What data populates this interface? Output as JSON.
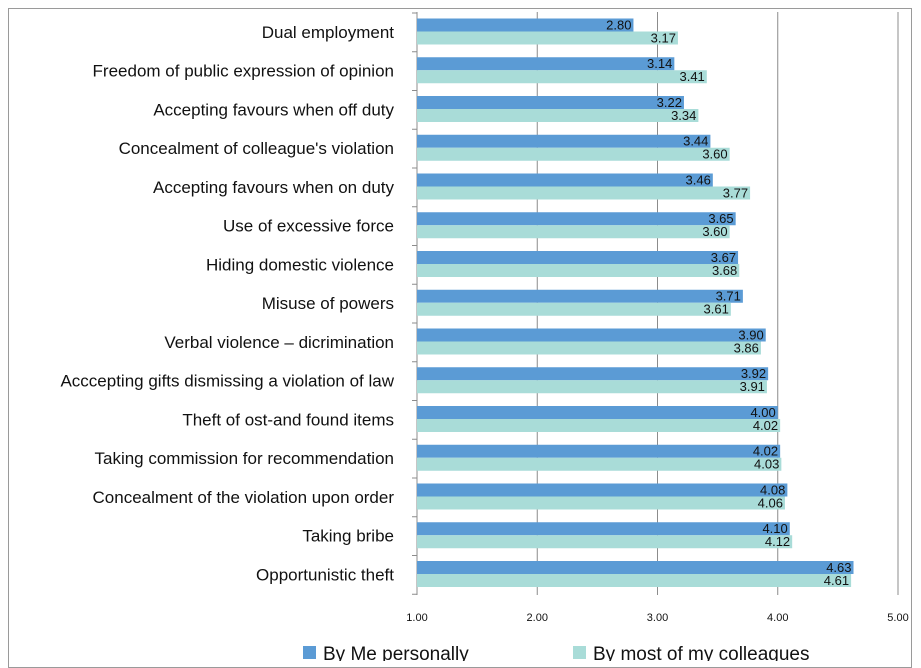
{
  "chart_data": {
    "type": "bar",
    "orientation": "horizontal",
    "categories": [
      "Dual employment",
      "Freedom of public expression of opinion",
      "Accepting favours when off duty",
      "Concealment of colleague's violation",
      "Accepting favours when on duty",
      "Use of excessive force",
      "Hiding domestic violence",
      "Misuse of powers",
      "Verbal violence – dicrimination",
      "Acccepting gifts dismissing a violation of law",
      "Theft of ost-and found items",
      "Taking commission for recommendation",
      "Concealment of the violation upon order",
      "Taking bribe",
      "Opportunistic theft"
    ],
    "series": [
      {
        "name": "By Me personally",
        "color": "#5b9bd5",
        "values": [
          2.8,
          3.14,
          3.22,
          3.44,
          3.46,
          3.65,
          3.67,
          3.71,
          3.9,
          3.92,
          4.0,
          4.02,
          4.08,
          4.1,
          4.63
        ],
        "labels": [
          "2.80",
          "3.14",
          "3.22",
          "3.44",
          "3.46",
          "3.65",
          "3.67",
          "3.71",
          "3.90",
          "3.92",
          "4.00",
          "4.02",
          "4.08",
          "4.10",
          "4.63"
        ]
      },
      {
        "name": "By most of my colleagues",
        "color": "#a9dcd8",
        "values": [
          3.17,
          3.41,
          3.34,
          3.6,
          3.77,
          3.6,
          3.68,
          3.61,
          3.86,
          3.91,
          4.02,
          4.03,
          4.06,
          4.12,
          4.61
        ],
        "labels": [
          "3.17",
          "3.41",
          "3.34",
          "3.60",
          "3.77",
          "3.60",
          "3.68",
          "3.61",
          "3.86",
          "3.91",
          "4.02",
          "4.03",
          "4.06",
          "4.12",
          "4.61"
        ]
      }
    ],
    "xlim": [
      1,
      5
    ],
    "xticks": [
      "1.00",
      "2.00",
      "3.00",
      "4.00",
      "5.00"
    ],
    "grid": true,
    "legend_position": "bottom",
    "title": "",
    "xlabel": "",
    "ylabel": ""
  }
}
